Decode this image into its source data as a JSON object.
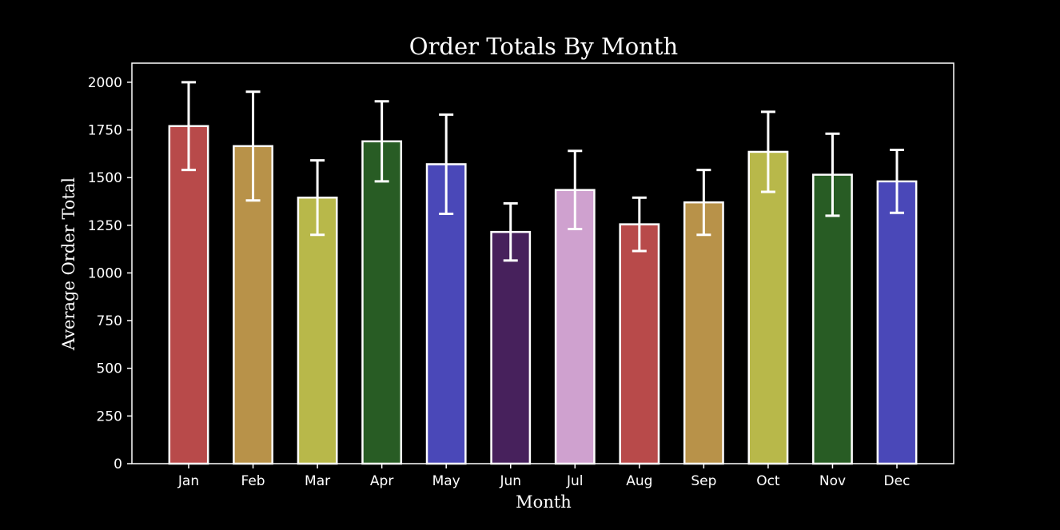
{
  "colors": {
    "background": "#000000",
    "foreground": "#ffffff"
  },
  "chart_data": {
    "type": "bar",
    "title": "Order Totals By Month",
    "xlabel": "Month",
    "ylabel": "Average Order Total",
    "ylim": [
      0,
      2100
    ],
    "yticks": [
      0,
      250,
      500,
      750,
      1000,
      1250,
      1500,
      1750,
      2000
    ],
    "grid": false,
    "categories": [
      "Jan",
      "Feb",
      "Mar",
      "Apr",
      "May",
      "Jun",
      "Jul",
      "Aug",
      "Sep",
      "Oct",
      "Nov",
      "Dec"
    ],
    "values": [
      1770,
      1665,
      1395,
      1690,
      1570,
      1215,
      1435,
      1255,
      1370,
      1635,
      1515,
      1480
    ],
    "error": [
      230,
      285,
      195,
      210,
      260,
      150,
      205,
      140,
      170,
      210,
      215,
      165
    ],
    "colors": [
      "#b84a4a",
      "#b89249",
      "#b8b84a",
      "#285c24",
      "#4a48b8",
      "#47215c",
      "#cfa1cf",
      "#b84a4a",
      "#b89249",
      "#b8b84a",
      "#285c24",
      "#4a48b8"
    ]
  }
}
